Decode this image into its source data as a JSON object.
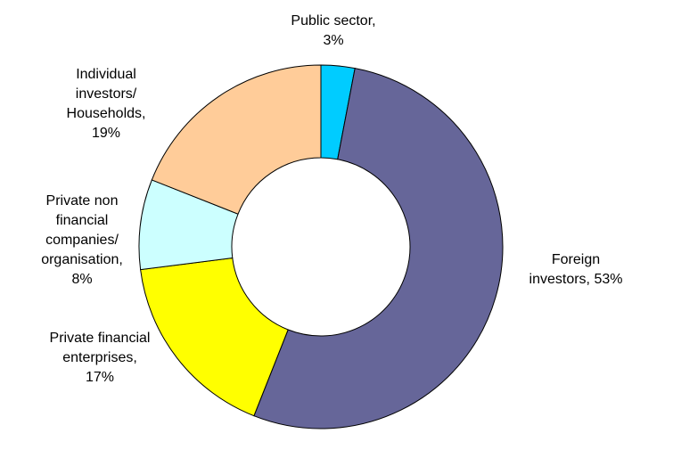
{
  "chart_data": {
    "type": "pie",
    "variant": "donut",
    "start_at": "12 o'clock",
    "direction": "clockwise",
    "slices": [
      {
        "label": "Public sector",
        "value": 3,
        "value_label": "3%",
        "color": "#00CCFF",
        "label_lines": [
          "Public sector,",
          "3%"
        ]
      },
      {
        "label": "Foreign investors",
        "value": 53,
        "value_label": "53%",
        "color": "#666699",
        "label_lines": [
          "Foreign",
          "investors, 53%"
        ]
      },
      {
        "label": "Private financial enterprises",
        "value": 17,
        "value_label": "17%",
        "color": "#FFFF00",
        "label_lines": [
          "Private financial",
          "enterprises,",
          "17%"
        ]
      },
      {
        "label": "Private non financial companies/ organisation",
        "value": 8,
        "value_label": "8%",
        "color": "#CCFFFF",
        "label_lines": [
          "Private non",
          "financial",
          "companies/",
          "organisation,",
          "8%"
        ]
      },
      {
        "label": "Individual investors/ Households",
        "value": 19,
        "value_label": "19%",
        "color": "#FFCC99",
        "label_lines": [
          "Individual",
          "investors/",
          "Households,",
          "19%"
        ]
      }
    ],
    "title": "",
    "legend": "none",
    "grid": false
  }
}
